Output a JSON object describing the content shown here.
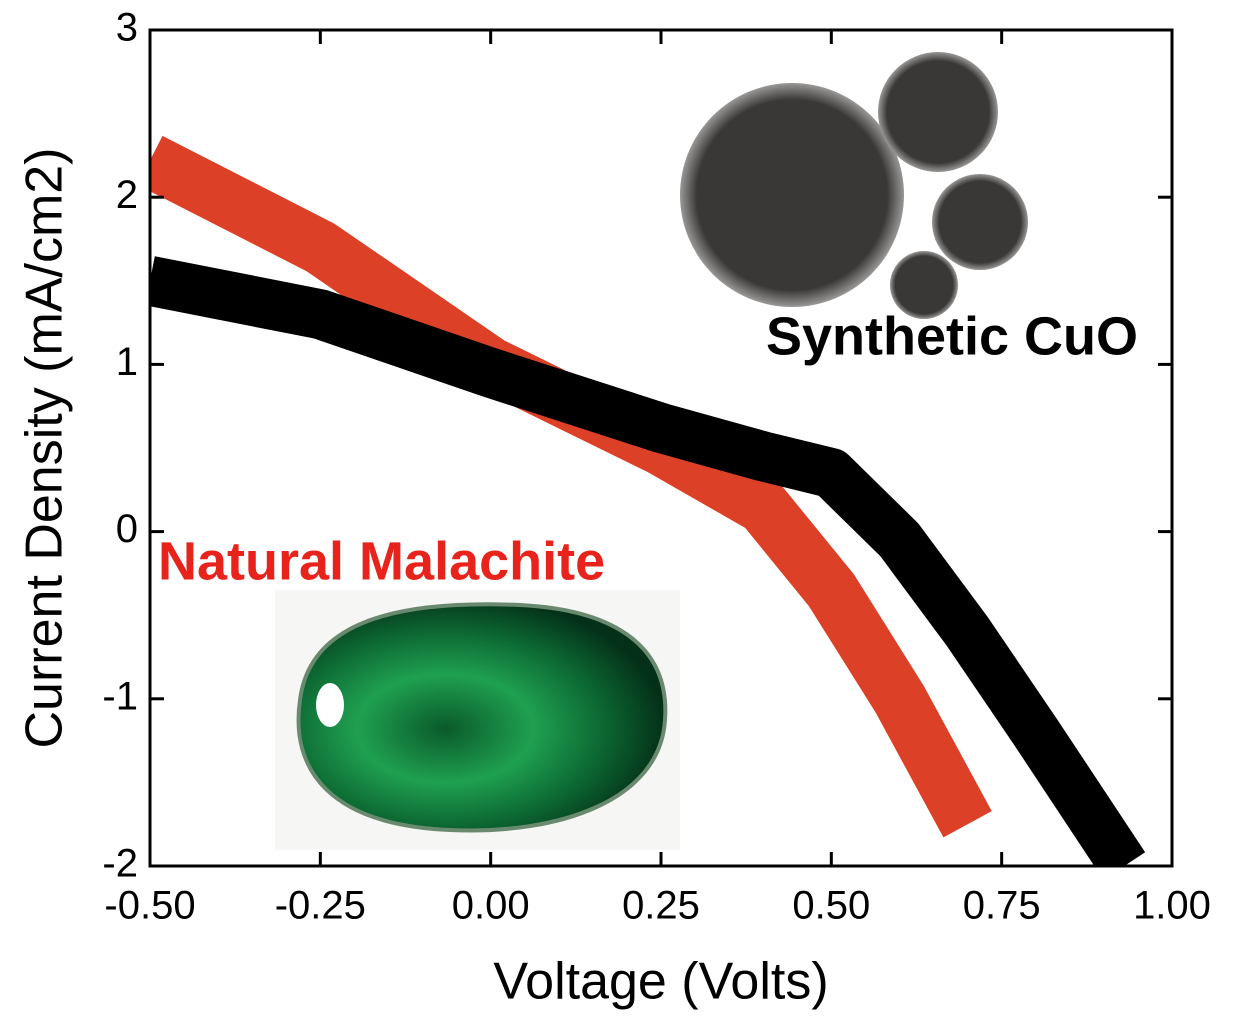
{
  "chart_data": {
    "type": "line",
    "x_label": "Voltage (Volts)",
    "y_label": "Current Density (mA/cm2)",
    "annotations": [
      "Synthetic CuO",
      "Natural Malachite"
    ],
    "x": [
      -0.5,
      -0.25,
      0,
      0.25,
      0.4,
      0.5,
      0.6,
      0.7,
      0.8,
      0.93
    ],
    "series": [
      {
        "name": "Synthetic CuO",
        "color": "#000000",
        "values": [
          1.5,
          1.3,
          0.95,
          0.62,
          0.45,
          0.35,
          -0.05,
          -0.6,
          -1.2,
          -2.0
        ]
      },
      {
        "name": "Natural Malachite",
        "color": "#dc4026",
        "values": [
          2.22,
          1.7,
          1.0,
          0.5,
          0.15,
          -0.35,
          -1.0,
          -1.75,
          null,
          null
        ]
      }
    ],
    "xlim": [
      -0.5,
      1.0
    ],
    "ylim": [
      -2,
      3
    ],
    "xticks": [
      {
        "value": -0.5,
        "label": "-0.50"
      },
      {
        "value": -0.25,
        "label": "-0.25"
      },
      {
        "value": 0,
        "label": "0.00"
      },
      {
        "value": 0.25,
        "label": "0.25"
      },
      {
        "value": 0.5,
        "label": "0.50"
      },
      {
        "value": 0.75,
        "label": "0.75"
      },
      {
        "value": 1.0,
        "label": "1.00"
      }
    ],
    "yticks": [
      -2,
      -1,
      0,
      1,
      2,
      3
    ]
  }
}
